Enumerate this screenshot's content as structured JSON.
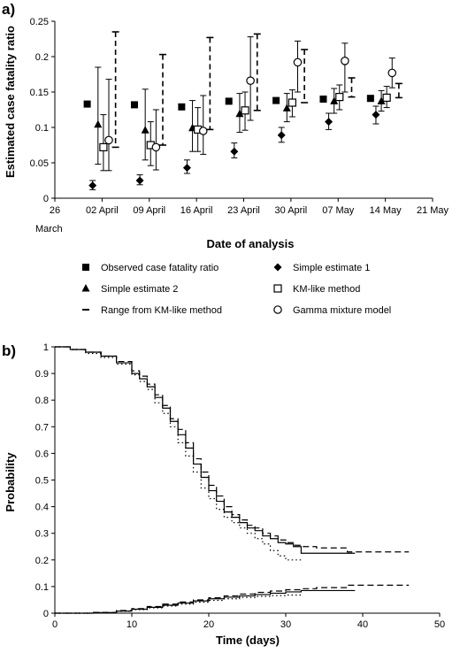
{
  "chart_data": [
    {
      "panel": "a)",
      "type": "scatter",
      "xlabel": "Date of analysis",
      "ylabel": "Estimated case fatality ratio",
      "ylim": [
        0,
        0.25
      ],
      "yticks": [
        0,
        0.05,
        0.1,
        0.15,
        0.2,
        0.25
      ],
      "xticks": [
        {
          "pos": 0,
          "label": "26"
        },
        {
          "pos": 7,
          "label": "02 April"
        },
        {
          "pos": 14,
          "label": "09 April"
        },
        {
          "pos": 21,
          "label": "16 April"
        },
        {
          "pos": 28,
          "label": "23 April"
        },
        {
          "pos": 35,
          "label": "30 April"
        },
        {
          "pos": 42,
          "label": "07 May"
        },
        {
          "pos": 49,
          "label": "14 May"
        },
        {
          "pos": 56,
          "label": "21 May"
        }
      ],
      "xlabel_extra": "March",
      "xlim": [
        0,
        56
      ],
      "x_unit": "days since 26 March",
      "legend": [
        {
          "label": "Observed case fatality ratio",
          "marker": "filled-square"
        },
        {
          "label": "Simple estimate 1",
          "marker": "filled-diamond"
        },
        {
          "label": "Simple estimate 2",
          "marker": "filled-triangle"
        },
        {
          "label": "KM-like method",
          "marker": "open-square"
        },
        {
          "label": "Range from KM-like method",
          "marker": "dash"
        },
        {
          "label": "Gamma mixture model",
          "marker": "open-circle"
        }
      ],
      "series": [
        {
          "key": "observed",
          "marker": "filled-square",
          "points": [
            {
              "x": 4.8,
              "y": 0.133
            },
            {
              "x": 11.8,
              "y": 0.132
            },
            {
              "x": 18.8,
              "y": 0.129
            },
            {
              "x": 25.8,
              "y": 0.137
            },
            {
              "x": 32.8,
              "y": 0.138
            },
            {
              "x": 39.8,
              "y": 0.14
            },
            {
              "x": 46.8,
              "y": 0.141
            }
          ]
        },
        {
          "key": "simple1",
          "marker": "filled-diamond",
          "points": [
            {
              "x": 5.6,
              "y": 0.018,
              "lo": 0.012,
              "hi": 0.025
            },
            {
              "x": 12.6,
              "y": 0.025,
              "lo": 0.019,
              "hi": 0.033
            },
            {
              "x": 19.6,
              "y": 0.043,
              "lo": 0.035,
              "hi": 0.054
            },
            {
              "x": 26.6,
              "y": 0.066,
              "lo": 0.057,
              "hi": 0.078
            },
            {
              "x": 33.6,
              "y": 0.089,
              "lo": 0.079,
              "hi": 0.1
            },
            {
              "x": 40.6,
              "y": 0.108,
              "lo": 0.097,
              "hi": 0.12
            },
            {
              "x": 47.6,
              "y": 0.118,
              "lo": 0.105,
              "hi": 0.13
            }
          ]
        },
        {
          "key": "simple2",
          "marker": "filled-triangle",
          "points": [
            {
              "x": 6.4,
              "y": 0.104,
              "lo": 0.048,
              "hi": 0.185
            },
            {
              "x": 13.4,
              "y": 0.096,
              "lo": 0.054,
              "hi": 0.154
            },
            {
              "x": 20.4,
              "y": 0.099,
              "lo": 0.066,
              "hi": 0.138
            },
            {
              "x": 27.4,
              "y": 0.119,
              "lo": 0.093,
              "hi": 0.148
            },
            {
              "x": 34.4,
              "y": 0.127,
              "lo": 0.108,
              "hi": 0.148
            },
            {
              "x": 41.4,
              "y": 0.137,
              "lo": 0.12,
              "hi": 0.155
            },
            {
              "x": 48.4,
              "y": 0.137,
              "lo": 0.123,
              "hi": 0.152
            }
          ]
        },
        {
          "key": "km",
          "marker": "open-square",
          "points": [
            {
              "x": 7.2,
              "y": 0.072,
              "lo": 0.039,
              "hi": 0.118
            },
            {
              "x": 14.2,
              "y": 0.075,
              "lo": 0.046,
              "hi": 0.108
            },
            {
              "x": 21.2,
              "y": 0.097,
              "lo": 0.066,
              "hi": 0.128
            },
            {
              "x": 28.2,
              "y": 0.124,
              "lo": 0.096,
              "hi": 0.15
            },
            {
              "x": 35.2,
              "y": 0.135,
              "lo": 0.115,
              "hi": 0.153
            },
            {
              "x": 42.2,
              "y": 0.143,
              "lo": 0.125,
              "hi": 0.16
            },
            {
              "x": 49.2,
              "y": 0.142,
              "lo": 0.128,
              "hi": 0.158
            }
          ]
        },
        {
          "key": "gamma",
          "marker": "open-circle",
          "points": [
            {
              "x": 8.0,
              "y": 0.082,
              "lo": 0.039,
              "hi": 0.168
            },
            {
              "x": 15.0,
              "y": 0.072,
              "lo": 0.04,
              "hi": 0.125
            },
            {
              "x": 22.0,
              "y": 0.095,
              "lo": 0.062,
              "hi": 0.145
            },
            {
              "x": 29.0,
              "y": 0.166,
              "lo": 0.11,
              "hi": 0.228
            },
            {
              "x": 36.0,
              "y": 0.192,
              "lo": 0.15,
              "hi": 0.222
            },
            {
              "x": 43.0,
              "y": 0.194,
              "lo": 0.15,
              "hi": 0.219
            },
            {
              "x": 50.0,
              "y": 0.177,
              "lo": 0.156,
              "hi": 0.198
            }
          ]
        },
        {
          "key": "km_range",
          "marker": "dash",
          "points": [
            {
              "x": 9.0,
              "lo": 0.072,
              "hi": 0.235
            },
            {
              "x": 16.0,
              "lo": 0.075,
              "hi": 0.203
            },
            {
              "x": 23.0,
              "lo": 0.097,
              "hi": 0.227
            },
            {
              "x": 30.0,
              "lo": 0.124,
              "hi": 0.232
            },
            {
              "x": 37.0,
              "lo": 0.135,
              "hi": 0.21
            },
            {
              "x": 44.0,
              "lo": 0.143,
              "hi": 0.17
            },
            {
              "x": 51.0,
              "lo": 0.142,
              "hi": 0.162
            }
          ]
        }
      ]
    },
    {
      "panel": "b)",
      "type": "line",
      "xlabel": "Time (days)",
      "ylabel": "Probability",
      "xlim": [
        0,
        50
      ],
      "ylim": [
        0,
        1
      ],
      "xticks": [
        0,
        10,
        20,
        30,
        40,
        50
      ],
      "yticks": [
        0,
        0.1,
        0.2,
        0.3,
        0.4,
        0.5,
        0.6,
        0.7,
        0.8,
        0.9,
        1
      ],
      "series": [
        {
          "key": "solid-upper",
          "style": "solid",
          "x": [
            0,
            2,
            4,
            6,
            8,
            10,
            11,
            12,
            13,
            14,
            15,
            16,
            17,
            18,
            19,
            20,
            21,
            22,
            23,
            24,
            25,
            26,
            27,
            28,
            29,
            30,
            31,
            32,
            39
          ],
          "y": [
            1,
            0.99,
            0.98,
            0.965,
            0.94,
            0.9,
            0.88,
            0.85,
            0.81,
            0.77,
            0.72,
            0.67,
            0.62,
            0.56,
            0.51,
            0.46,
            0.42,
            0.38,
            0.36,
            0.34,
            0.32,
            0.31,
            0.29,
            0.28,
            0.265,
            0.26,
            0.25,
            0.225,
            0.225
          ]
        },
        {
          "key": "dashed-upper",
          "style": "dashed",
          "x": [
            0,
            2,
            4,
            6,
            8,
            10,
            11,
            12,
            13,
            14,
            15,
            16,
            17,
            18,
            19,
            20,
            21,
            22,
            23,
            24,
            25,
            26,
            27,
            28,
            29,
            30,
            31,
            32,
            34,
            38,
            46
          ],
          "y": [
            1,
            0.99,
            0.98,
            0.965,
            0.945,
            0.91,
            0.89,
            0.86,
            0.82,
            0.78,
            0.73,
            0.69,
            0.64,
            0.58,
            0.53,
            0.48,
            0.44,
            0.4,
            0.37,
            0.35,
            0.33,
            0.32,
            0.3,
            0.29,
            0.275,
            0.265,
            0.255,
            0.25,
            0.245,
            0.23,
            0.23
          ]
        },
        {
          "key": "dotted-upper",
          "style": "dotted",
          "x": [
            0,
            2,
            4,
            6,
            8,
            10,
            11,
            12,
            13,
            14,
            15,
            16,
            17,
            18,
            19,
            20,
            21,
            22,
            23,
            24,
            25,
            26,
            27,
            28,
            29,
            30,
            32
          ],
          "y": [
            1,
            0.99,
            0.975,
            0.96,
            0.935,
            0.895,
            0.87,
            0.84,
            0.79,
            0.75,
            0.7,
            0.64,
            0.59,
            0.53,
            0.47,
            0.43,
            0.39,
            0.36,
            0.34,
            0.32,
            0.3,
            0.28,
            0.26,
            0.235,
            0.215,
            0.2,
            0.2
          ]
        },
        {
          "key": "solid-lower",
          "style": "solid",
          "x": [
            0,
            5,
            8,
            10,
            12,
            14,
            16,
            18,
            20,
            22,
            24,
            26,
            28,
            30,
            32,
            39
          ],
          "y": [
            0,
            0.002,
            0.008,
            0.015,
            0.022,
            0.03,
            0.038,
            0.046,
            0.054,
            0.06,
            0.065,
            0.07,
            0.075,
            0.08,
            0.085,
            0.085
          ]
        },
        {
          "key": "dashed-lower",
          "style": "dashed",
          "x": [
            0,
            5,
            8,
            10,
            12,
            14,
            16,
            18,
            20,
            22,
            24,
            26,
            28,
            30,
            32,
            34,
            38,
            46
          ],
          "y": [
            0,
            0.003,
            0.01,
            0.017,
            0.025,
            0.034,
            0.042,
            0.05,
            0.058,
            0.065,
            0.072,
            0.078,
            0.083,
            0.088,
            0.092,
            0.096,
            0.105,
            0.105
          ]
        },
        {
          "key": "dotted-lower",
          "style": "dotted",
          "x": [
            0,
            5,
            8,
            10,
            12,
            14,
            16,
            18,
            20,
            22,
            24,
            26,
            28,
            30,
            32
          ],
          "y": [
            0,
            0.002,
            0.007,
            0.013,
            0.02,
            0.027,
            0.034,
            0.041,
            0.048,
            0.054,
            0.059,
            0.063,
            0.066,
            0.068,
            0.068
          ]
        }
      ]
    }
  ]
}
